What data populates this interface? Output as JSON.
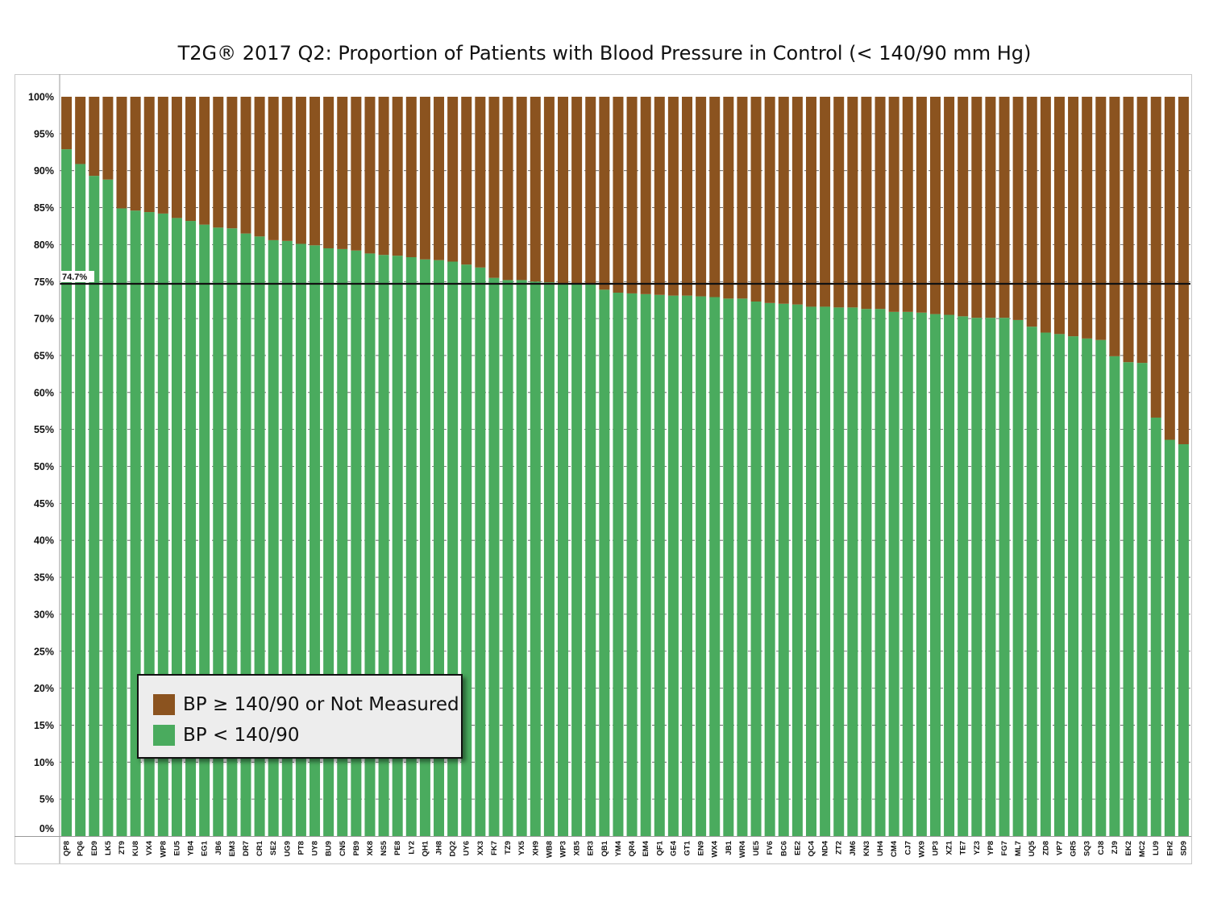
{
  "title": "T2G® 2017 Q2: Proportion of Patients with Blood Pressure in Control (< 140/90 mm Hg)",
  "colors": {
    "in_control": "#4aab5e",
    "not_in_control": "#8b531f",
    "reference_line": "#111111",
    "grid": "#555555"
  },
  "legend": {
    "items": [
      {
        "label": "BP ≥ 140/90 or Not Measured",
        "color": "#8b531f"
      },
      {
        "label": "BP < 140/90",
        "color": "#4aab5e"
      }
    ]
  },
  "chart_data": {
    "type": "bar",
    "stacked": true,
    "title": "T2G® 2017 Q2: Proportion of Patients with Blood Pressure in Control (< 140/90 mm Hg)",
    "xlabel": "",
    "ylabel": "",
    "ylim": [
      0,
      100
    ],
    "y_ticks": [
      "0%",
      "5%",
      "10%",
      "15%",
      "20%",
      "25%",
      "30%",
      "35%",
      "40%",
      "45%",
      "50%",
      "55%",
      "60%",
      "65%",
      "70%",
      "75%",
      "80%",
      "85%",
      "90%",
      "95%",
      "100%"
    ],
    "grid": true,
    "legend_position": "bottom-left",
    "reference_line": {
      "value": 74.7,
      "label": "74.7%"
    },
    "categories": [
      "QP8",
      "PQ6",
      "ED9",
      "LK5",
      "ZT9",
      "KU8",
      "VX4",
      "WP8",
      "EU5",
      "YB4",
      "EG1",
      "JB6",
      "EM3",
      "DR7",
      "CR1",
      "SE2",
      "UG9",
      "PT8",
      "UY8",
      "BU9",
      "CN5",
      "PB9",
      "XK8",
      "NS5",
      "PE8",
      "LY2",
      "QH1",
      "JH8",
      "DQ2",
      "UY6",
      "XX3",
      "FK7",
      "TZ9",
      "YX5",
      "XH9",
      "WB8",
      "WP3",
      "XB5",
      "ER3",
      "QB1",
      "YM4",
      "QR4",
      "EM4",
      "QF1",
      "GE4",
      "GT1",
      "EN9",
      "WX4",
      "JB1",
      "WR4",
      "UE5",
      "FV6",
      "BC6",
      "EE2",
      "QC4",
      "ND4",
      "ZT2",
      "JM6",
      "KN3",
      "UH4",
      "CM4",
      "CJ7",
      "WX9",
      "UP3",
      "XZ1",
      "TE7",
      "YZ3",
      "YP8",
      "FG7",
      "ML7",
      "UQ5",
      "ZD8",
      "VP7",
      "GR5",
      "SQ3",
      "CJ8",
      "ZJ9",
      "EK2",
      "MC2",
      "LU9",
      "EH2",
      "SD9"
    ],
    "series": [
      {
        "name": "BP < 140/90",
        "values": [
          92.9,
          90.9,
          89.3,
          88.8,
          84.9,
          84.6,
          84.4,
          84.2,
          83.6,
          83.2,
          82.7,
          82.3,
          82.2,
          81.5,
          81.1,
          80.6,
          80.5,
          80.1,
          79.9,
          79.5,
          79.4,
          79.2,
          78.8,
          78.6,
          78.5,
          78.3,
          78.0,
          77.9,
          77.7,
          77.3,
          76.9,
          75.5,
          75.2,
          75.2,
          75.0,
          74.9,
          74.7,
          74.6,
          74.6,
          73.9,
          73.5,
          73.4,
          73.3,
          73.2,
          73.1,
          73.1,
          73.0,
          72.9,
          72.7,
          72.7,
          72.3,
          72.1,
          72.0,
          71.9,
          71.6,
          71.6,
          71.5,
          71.5,
          71.3,
          71.3,
          70.9,
          70.9,
          70.8,
          70.6,
          70.5,
          70.3,
          70.1,
          70.1,
          70.1,
          69.8,
          68.9,
          68.1,
          67.9,
          67.6,
          67.3,
          67.1,
          64.9,
          64.1,
          64.0,
          56.6,
          53.6,
          53.0
        ]
      },
      {
        "name": "BP ≥ 140/90 or Not Measured",
        "values": [
          7.1,
          9.1,
          10.7,
          11.2,
          15.1,
          15.4,
          15.6,
          15.8,
          16.4,
          16.8,
          17.3,
          17.7,
          17.8,
          18.5,
          18.9,
          19.4,
          19.5,
          19.9,
          20.1,
          20.5,
          20.6,
          20.8,
          21.2,
          21.4,
          21.5,
          21.7,
          22.0,
          22.1,
          22.3,
          22.7,
          23.1,
          24.5,
          24.8,
          24.8,
          25.0,
          25.1,
          25.3,
          25.4,
          25.4,
          26.1,
          26.5,
          26.6,
          26.7,
          26.8,
          26.9,
          26.9,
          27.0,
          27.1,
          27.3,
          27.3,
          27.7,
          27.9,
          28.0,
          28.1,
          28.4,
          28.4,
          28.5,
          28.5,
          28.7,
          28.7,
          29.1,
          29.1,
          29.2,
          29.4,
          29.5,
          29.7,
          29.9,
          29.9,
          29.9,
          30.2,
          31.1,
          31.9,
          32.1,
          32.4,
          32.7,
          32.9,
          35.1,
          35.9,
          36.0,
          43.4,
          46.4,
          47.0
        ]
      }
    ]
  }
}
